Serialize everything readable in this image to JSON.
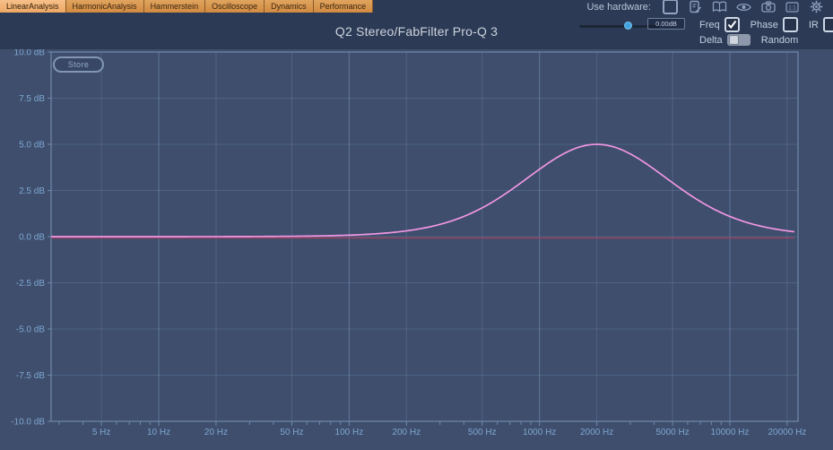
{
  "tabs": [
    {
      "label": "LinearAnalysis",
      "active": true
    },
    {
      "label": "HarmonicAnalysis",
      "active": false
    },
    {
      "label": "Hammerstein",
      "active": false
    },
    {
      "label": "Oscilloscope",
      "active": false
    },
    {
      "label": "Dynamics",
      "active": false
    },
    {
      "label": "Performance",
      "active": false
    }
  ],
  "hardware": {
    "label": "Use hardware:",
    "checkbox_checked": false,
    "icons": [
      "note-edit",
      "book",
      "eye",
      "camera",
      "one-to-one",
      "gear"
    ]
  },
  "controls": {
    "gain_slider": {
      "value_label": "0.00dB",
      "position_pct": 62
    },
    "freq": {
      "label": "Freq",
      "checked": true
    },
    "phase": {
      "label": "Phase",
      "checked": false
    },
    "ir": {
      "label": "IR",
      "checked": false
    },
    "delta": {
      "label": "Delta",
      "toggle_state": "left"
    },
    "random": {
      "label": "Random"
    },
    "store_label": "Store"
  },
  "chart_data": {
    "type": "line",
    "title": "Q2 Stereo/FabFilter Pro-Q 3",
    "x_axis": {
      "scale": "log",
      "unit": "Hz",
      "min_hz": 2.72,
      "max_hz": 22800,
      "ticks": [
        {
          "hz": 5,
          "label": "5 Hz"
        },
        {
          "hz": 10,
          "label": "10 Hz"
        },
        {
          "hz": 20,
          "label": "20 Hz"
        },
        {
          "hz": 50,
          "label": "50 Hz"
        },
        {
          "hz": 100,
          "label": "100 Hz"
        },
        {
          "hz": 200,
          "label": "200 Hz"
        },
        {
          "hz": 500,
          "label": "500 Hz"
        },
        {
          "hz": 1000,
          "label": "1000 Hz"
        },
        {
          "hz": 2000,
          "label": "2000 Hz"
        },
        {
          "hz": 5000,
          "label": "5000 Hz"
        },
        {
          "hz": 10000,
          "label": "10000 Hz"
        },
        {
          "hz": 20000,
          "label": "20000 Hz"
        }
      ],
      "minor_ticks_hz": [
        3,
        4,
        6,
        7,
        8,
        9,
        30,
        40,
        60,
        70,
        80,
        90,
        300,
        400,
        600,
        700,
        800,
        900,
        3000,
        4000,
        6000,
        7000,
        8000,
        9000
      ]
    },
    "y_axis": {
      "unit": "dB",
      "min_db": -10,
      "max_db": 10,
      "step_db": 2.5,
      "tick_labels": [
        "10.0 dB",
        "7.5 dB",
        "5.0 dB",
        "2.5 dB",
        "0.0 dB",
        "-2.5 dB",
        "-5.0 dB",
        "-7.5 dB",
        "-10.0 dB"
      ]
    },
    "series": [
      {
        "name": "magnitude-response",
        "color": "#f196e2",
        "stroke_width": 1.7,
        "model": {
          "shape": "peaking-bell",
          "center_hz": 2000,
          "gain_db": 5.0,
          "q": 0.4
        },
        "sample_points_hz_db": [
          [
            50,
            0.02
          ],
          [
            100,
            0.08
          ],
          [
            200,
            0.31
          ],
          [
            300,
            0.66
          ],
          [
            400,
            1.09
          ],
          [
            500,
            1.56
          ],
          [
            630,
            2.18
          ],
          [
            800,
            2.92
          ],
          [
            1000,
            3.65
          ],
          [
            1250,
            4.32
          ],
          [
            1600,
            4.83
          ],
          [
            2000,
            5.0
          ],
          [
            2500,
            4.83
          ],
          [
            3150,
            4.36
          ],
          [
            4000,
            3.65
          ],
          [
            5000,
            2.92
          ],
          [
            6300,
            2.2
          ],
          [
            8000,
            1.56
          ],
          [
            10000,
            1.09
          ],
          [
            12500,
            0.75
          ],
          [
            16000,
            0.48
          ],
          [
            20000,
            0.31
          ]
        ]
      },
      {
        "name": "zero-db-reference",
        "color": "#8e4260",
        "stroke_width": 1.6,
        "value_db": 0
      }
    ],
    "grid": {
      "show": true,
      "color": "rgba(132,163,210,0.25)",
      "decade_color": "rgba(140,170,215,0.45)"
    },
    "colors": {
      "plot_border": "#7089ad",
      "tick_label": "#7fa6d2",
      "background": "#3e4e6c",
      "header_background": "#2c3a55"
    }
  }
}
